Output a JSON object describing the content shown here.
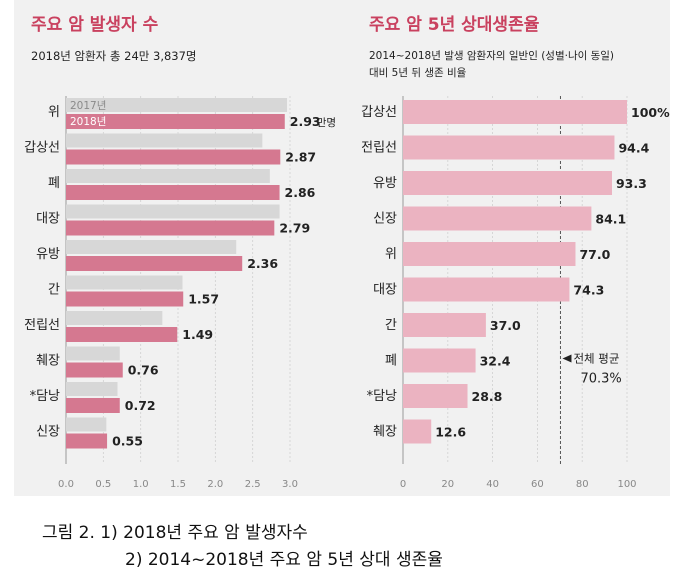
{
  "colors": {
    "panel_bg": "#f1f1f1",
    "title": "#c9415f",
    "bar_2017": "#d7d7d7",
    "bar_2018": "#d57890",
    "bar_survival": "#ebb3c1",
    "text_dark": "#222222",
    "axis_text": "#888888",
    "grid": "#d0d0d0",
    "avg_line": "#555555"
  },
  "chart_data": [
    {
      "type": "bar",
      "orientation": "horizontal",
      "title": "주요 암 발생자 수",
      "subtitle": "2018년 암환자 총 24만 3,837명",
      "categories": [
        "위",
        "갑상선",
        "폐",
        "대장",
        "유방",
        "간",
        "전립선",
        "췌장",
        "*담낭",
        "신장"
      ],
      "series": [
        {
          "name": "2017년",
          "values": [
            2.96,
            2.63,
            2.73,
            2.86,
            2.28,
            1.56,
            1.29,
            0.72,
            0.69,
            0.54
          ]
        },
        {
          "name": "2018년",
          "values": [
            2.93,
            2.87,
            2.86,
            2.79,
            2.36,
            1.57,
            1.49,
            0.76,
            0.72,
            0.55
          ]
        }
      ],
      "value_labels": [
        "2.93",
        "2.87",
        "2.86",
        "2.79",
        "2.36",
        "1.57",
        "1.49",
        "0.76",
        "0.72",
        "0.55"
      ],
      "first_label_unit": "만명",
      "xticks": [
        "0.0",
        "0.5",
        "1.0",
        "1.5",
        "2.0",
        "2.5",
        "3.0"
      ],
      "xlim": [
        0,
        3.0
      ],
      "legend_location": "inside-first-row"
    },
    {
      "type": "bar",
      "orientation": "horizontal",
      "title": "주요 암 5년 상대생존율",
      "subtitle_lines": [
        "2014~2018년 발생 암환자의 일반인 (성별·나이 동일)",
        "대비 5년 뒤 생존 비율"
      ],
      "categories": [
        "갑상선",
        "전립선",
        "유방",
        "신장",
        "위",
        "대장",
        "간",
        "폐",
        "*담낭",
        "췌장"
      ],
      "values": [
        100,
        94.4,
        93.3,
        84.1,
        77.0,
        74.3,
        37.0,
        32.4,
        28.8,
        12.6
      ],
      "value_labels": [
        "100%",
        "94.4",
        "93.3",
        "84.1",
        "77.0",
        "74.3",
        "37.0",
        "32.4",
        "28.8",
        "12.6"
      ],
      "xticks": [
        "0",
        "20",
        "40",
        "60",
        "80",
        "100"
      ],
      "xlim": [
        0,
        100
      ],
      "reference_line": {
        "value": 70.3,
        "label": "전체 평균",
        "value_label": "70.3%"
      }
    }
  ],
  "caption": {
    "line1": "그림 2. 1) 2018년 주요 암 발생자수",
    "line2": "2) 2014~2018년 주요 암 5년 상대 생존율"
  }
}
